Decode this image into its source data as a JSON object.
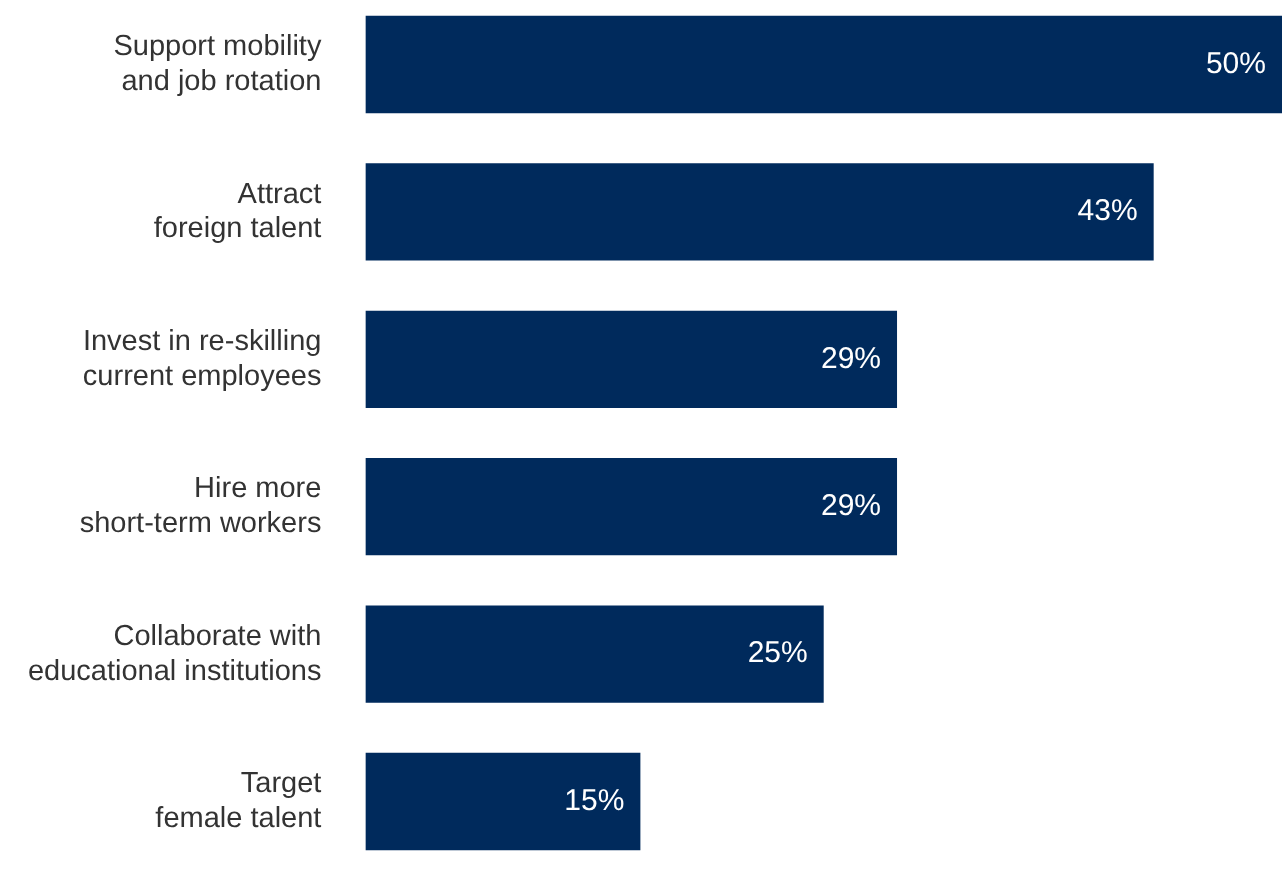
{
  "chart_data": {
    "type": "bar",
    "orientation": "horizontal",
    "categories": [
      "Support mobility\nand job rotation",
      "Attract\nforeign talent",
      "Invest in re-skilling\ncurrent employees",
      "Hire more\nshort-term workers",
      "Collaborate with\neducational institutions",
      "Target\nfemale talent"
    ],
    "values": [
      50,
      43,
      29,
      29,
      25,
      15
    ],
    "value_labels": [
      "50%",
      "43%",
      "29%",
      "29%",
      "25%",
      "15%"
    ],
    "color": "#002a5c"
  }
}
